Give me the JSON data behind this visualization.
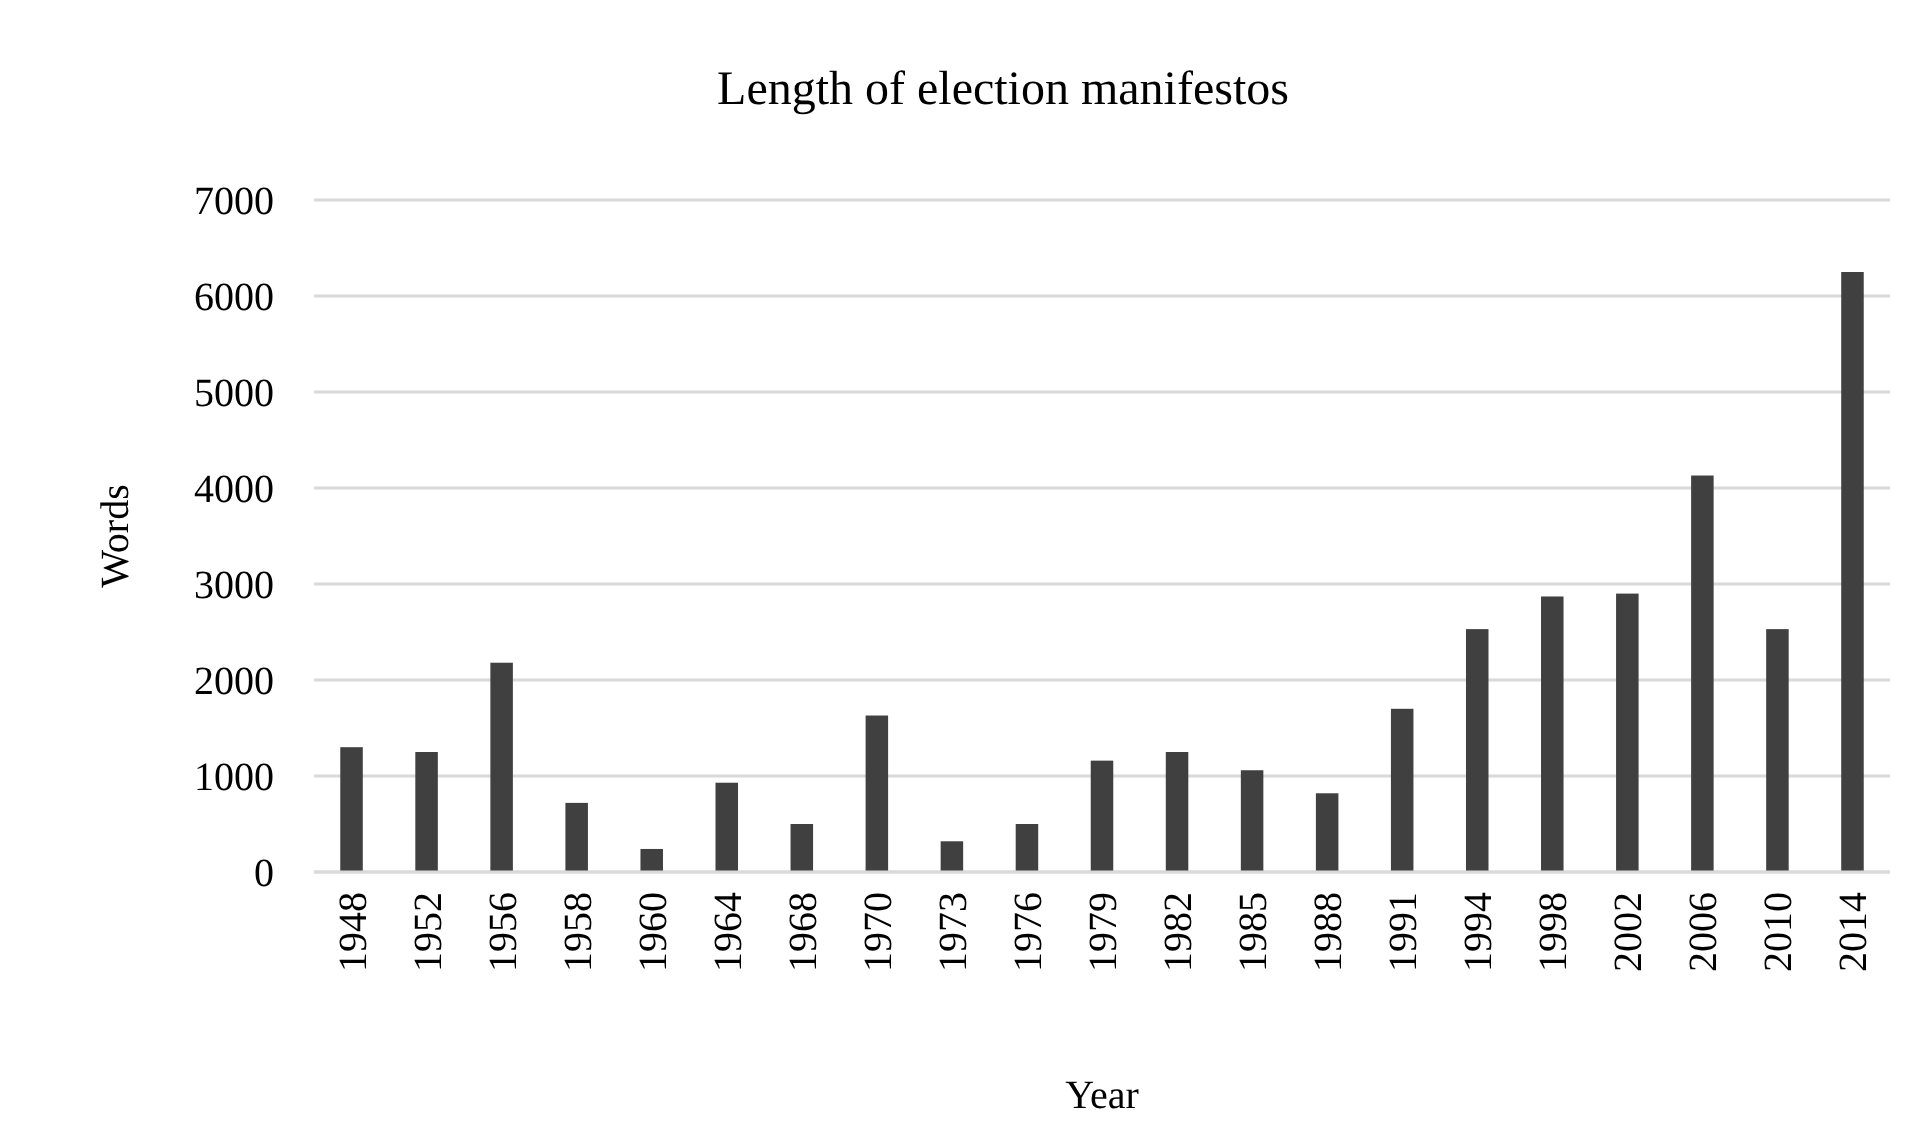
{
  "chart_data": {
    "type": "bar",
    "title": "Length of election manifestos",
    "xlabel": "Year",
    "ylabel": "Words",
    "categories": [
      "1948",
      "1952",
      "1956",
      "1958",
      "1960",
      "1964",
      "1968",
      "1970",
      "1973",
      "1976",
      "1979",
      "1982",
      "1985",
      "1988",
      "1991",
      "1994",
      "1998",
      "2002",
      "2006",
      "2010",
      "2014"
    ],
    "values": [
      1300,
      1250,
      2180,
      720,
      240,
      930,
      500,
      1630,
      320,
      500,
      1160,
      1250,
      1060,
      820,
      1700,
      2530,
      2870,
      2900,
      4130,
      2530,
      6250
    ],
    "color": "#404040",
    "ylim": [
      0,
      7000
    ],
    "yticks": [
      0,
      1000,
      2000,
      3000,
      4000,
      5000,
      6000,
      7000
    ],
    "grid": "y"
  }
}
